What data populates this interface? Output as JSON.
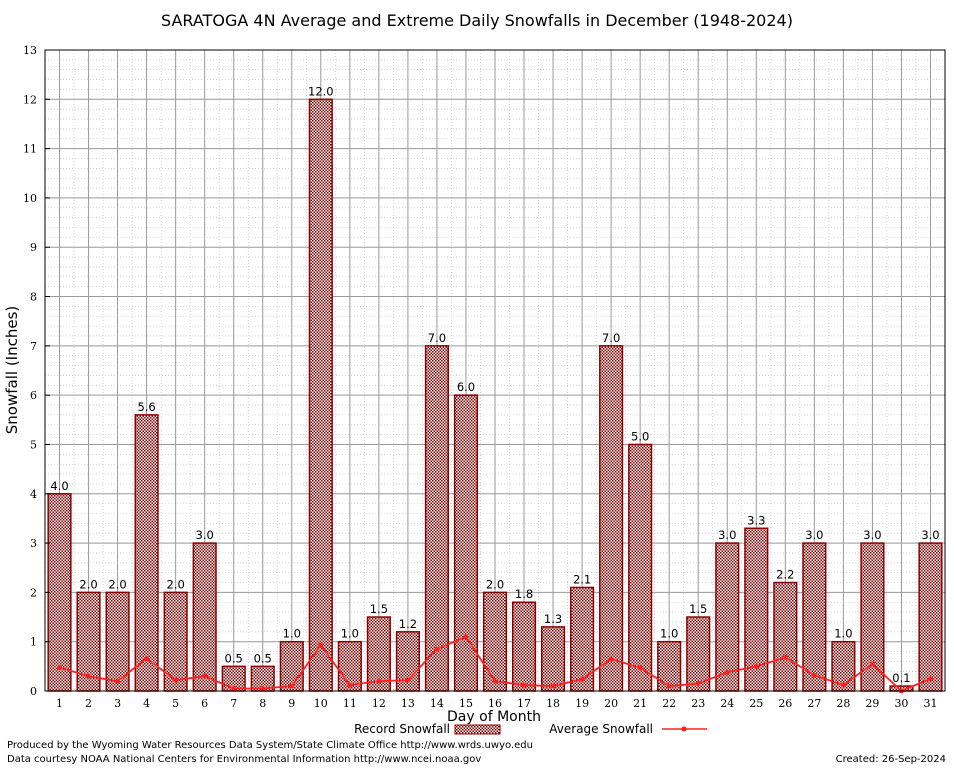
{
  "chart_data": {
    "type": "bar",
    "title": "SARATOGA 4N Average and Extreme Daily Snowfalls in December (1948-2024)",
    "xlabel": "Day of Month",
    "ylabel": "Snowfall (Inches)",
    "ylim": [
      0,
      13
    ],
    "yticks": [
      0,
      1,
      2,
      3,
      4,
      5,
      6,
      7,
      8,
      9,
      10,
      11,
      12,
      13
    ],
    "categories": [
      "1",
      "2",
      "3",
      "4",
      "5",
      "6",
      "7",
      "8",
      "9",
      "10",
      "11",
      "12",
      "13",
      "14",
      "15",
      "16",
      "17",
      "18",
      "19",
      "20",
      "21",
      "22",
      "23",
      "24",
      "25",
      "26",
      "27",
      "28",
      "29",
      "30",
      "31"
    ],
    "series": [
      {
        "name": "Record Snowfall",
        "kind": "bar",
        "color": "#8b0000",
        "values": [
          4.0,
          2.0,
          2.0,
          5.6,
          2.0,
          3.0,
          0.5,
          0.5,
          1.0,
          12.0,
          1.0,
          1.5,
          1.2,
          7.0,
          6.0,
          2.0,
          1.8,
          1.3,
          2.1,
          7.0,
          5.0,
          1.0,
          1.5,
          3.0,
          3.3,
          2.2,
          3.0,
          1.0,
          3.0,
          0.1,
          3.0
        ],
        "labels": [
          "4.0",
          "2.0",
          "2.0",
          "5.6",
          "2.0",
          "3.0",
          "0.5",
          "0.5",
          "1.0",
          "12.0",
          "1.0",
          "1.5",
          "1.2",
          "7.0",
          "6.0",
          "2.0",
          "1.8",
          "1.3",
          "2.1",
          "7.0",
          "5.0",
          "1.0",
          "1.5",
          "3.0",
          "3.3",
          "2.2",
          "3.0",
          "1.0",
          "3.0",
          "0.1",
          "3.0"
        ]
      },
      {
        "name": "Average Snowfall",
        "kind": "line",
        "color": "#ff2020",
        "values": [
          0.48,
          0.3,
          0.2,
          0.66,
          0.22,
          0.3,
          0.05,
          0.05,
          0.1,
          0.93,
          0.12,
          0.2,
          0.22,
          0.85,
          1.1,
          0.2,
          0.12,
          0.1,
          0.24,
          0.65,
          0.47,
          0.1,
          0.15,
          0.38,
          0.5,
          0.68,
          0.32,
          0.12,
          0.55,
          0.0,
          0.25
        ]
      }
    ],
    "grid": true,
    "legend": "bottom-center"
  },
  "footer": {
    "producer": "Produced by the Wyoming Water Resources Data System/State Climate Office http://www.wrds.uwyo.edu",
    "courtesy": "Data courtesy NOAA National Centers for Environmental Information http://www.ncei.noaa.gov",
    "created": "Created:  26-Sep-2024"
  }
}
